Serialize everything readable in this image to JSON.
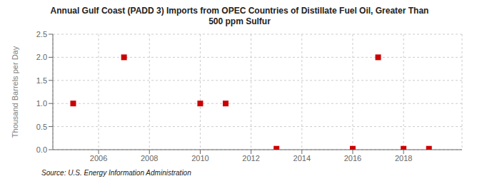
{
  "chart_data": {
    "type": "scatter",
    "title": "Annual Gulf Coast (PADD 3) Imports from OPEC Countries of Distillate Fuel Oil, Greater Than\n500 ppm Sulfur",
    "ylabel": "Thousand Barrels per Day",
    "annotations": [
      "Source: U.S. Energy Information Administration"
    ],
    "x": [
      2005,
      2007,
      2010,
      2011,
      2013,
      2016,
      2017,
      2018,
      2019
    ],
    "values": [
      1.0,
      2.0,
      1.0,
      1.0,
      0.02,
      0.02,
      2.0,
      0.02,
      0.02
    ],
    "color": "#cc0000",
    "marker": "square",
    "xlim": [
      2004.2,
      2020.3
    ],
    "ylim": [
      0.0,
      2.5
    ],
    "xticks": [
      2006,
      2008,
      2010,
      2012,
      2014,
      2016,
      2018
    ],
    "yticks": [
      {
        "value": 0.0,
        "label": "0.0"
      },
      0.5,
      {
        "value": 1.0,
        "label": "1.0"
      },
      1.5,
      {
        "value": 2.0,
        "label": "2.0"
      },
      2.5
    ],
    "grid": true
  }
}
